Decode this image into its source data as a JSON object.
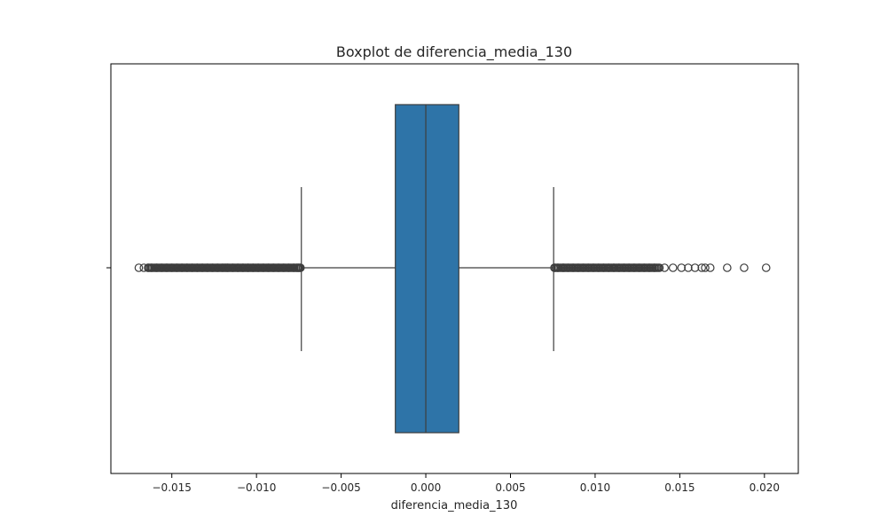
{
  "chart_data": {
    "type": "boxplot",
    "title": "Boxplot de diferencia_media_130",
    "xlabel": "diferencia_media_130",
    "ylabel": "",
    "orientation": "horizontal",
    "xlim": [
      -0.0186,
      0.022
    ],
    "x_ticks": [
      -0.015,
      -0.01,
      -0.005,
      0.0,
      0.005,
      0.01,
      0.015,
      0.02
    ],
    "x_tick_labels": [
      "−0.015",
      "−0.010",
      "−0.005",
      "0.000",
      "0.005",
      "0.010",
      "0.015",
      "0.020"
    ],
    "grid": false,
    "box": {
      "min_whisker": -0.00735,
      "q1": -0.0018,
      "median": 0.0,
      "q3": 0.00195,
      "max_whisker": 0.00755,
      "fill_color": "#2e74a8",
      "edge_color": "#3d3d3d"
    },
    "outliers_low": [
      -0.01695,
      -0.01665,
      -0.0164,
      -0.0162,
      -0.0159,
      -0.0156,
      -0.0153,
      -0.015,
      -0.0147,
      -0.0144,
      -0.0141,
      -0.0138,
      -0.0135,
      -0.0132,
      -0.0129,
      -0.0126,
      -0.0123,
      -0.012,
      -0.0117,
      -0.0114,
      -0.0111,
      -0.0108,
      -0.0105,
      -0.0102,
      -0.0099,
      -0.0096,
      -0.0093,
      -0.009,
      -0.0087,
      -0.0084,
      -0.0081,
      -0.0078,
      -0.0076,
      -0.0075,
      -0.0074
    ],
    "outliers_high": [
      0.0076,
      0.0078,
      0.0081,
      0.0084,
      0.0087,
      0.009,
      0.0093,
      0.0096,
      0.0099,
      0.0102,
      0.0105,
      0.0108,
      0.0111,
      0.0114,
      0.0117,
      0.012,
      0.0123,
      0.0126,
      0.0129,
      0.0132,
      0.0135,
      0.0138,
      0.0141,
      0.0146,
      0.0151,
      0.0155,
      0.0159,
      0.0163,
      0.0165,
      0.0168,
      0.0178,
      0.0188,
      0.0201
    ]
  }
}
